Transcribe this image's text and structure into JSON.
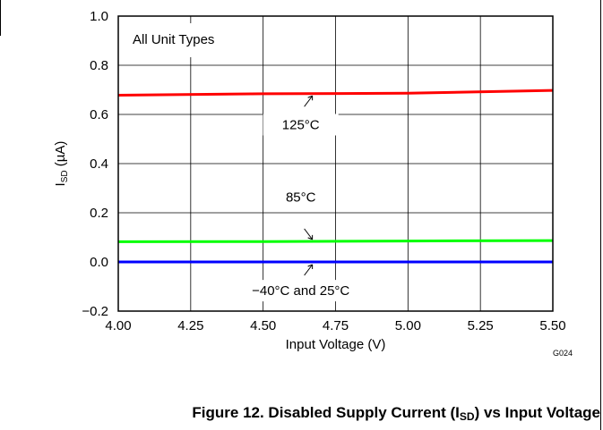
{
  "chart_data": {
    "type": "line",
    "xlabel": "Input Voltage (V)",
    "ylabel_main": "I",
    "ylabel_sub": "SD",
    "ylabel_unit": " (µA)",
    "xlim": [
      4.0,
      5.5
    ],
    "ylim": [
      -0.2,
      1.0
    ],
    "x_ticks": [
      4.0,
      4.25,
      4.5,
      4.75,
      5.0,
      5.25,
      5.5
    ],
    "x_tick_labels": [
      "4.00",
      "4.25",
      "4.50",
      "4.75",
      "5.00",
      "5.25",
      "5.50"
    ],
    "y_ticks": [
      -0.2,
      0.0,
      0.2,
      0.4,
      0.6,
      0.8,
      1.0
    ],
    "y_tick_labels": [
      "−0.2",
      "0.0",
      "0.2",
      "0.4",
      "0.6",
      "0.8",
      "1.0"
    ],
    "grid": true,
    "annotation_box": "All Unit Types",
    "series": [
      {
        "name": "125°C",
        "color": "#ff0000",
        "x": [
          4.0,
          4.5,
          5.0,
          5.5
        ],
        "y": [
          0.678,
          0.684,
          0.686,
          0.698
        ]
      },
      {
        "name": "85°C",
        "color": "#00ff00",
        "x": [
          4.0,
          4.5,
          5.0,
          5.5
        ],
        "y": [
          0.082,
          0.083,
          0.085,
          0.087
        ]
      },
      {
        "name": "−40°C and 25°C",
        "color": "#0000ff",
        "x": [
          4.0,
          4.5,
          5.0,
          5.5
        ],
        "y": [
          0.0,
          0.0,
          0.0,
          0.0
        ]
      }
    ],
    "code": "G024"
  },
  "caption": {
    "prefix": "Figure 12. Disabled Supply Current (I",
    "sub": "SD",
    "suffix": ") vs Input Voltage"
  }
}
